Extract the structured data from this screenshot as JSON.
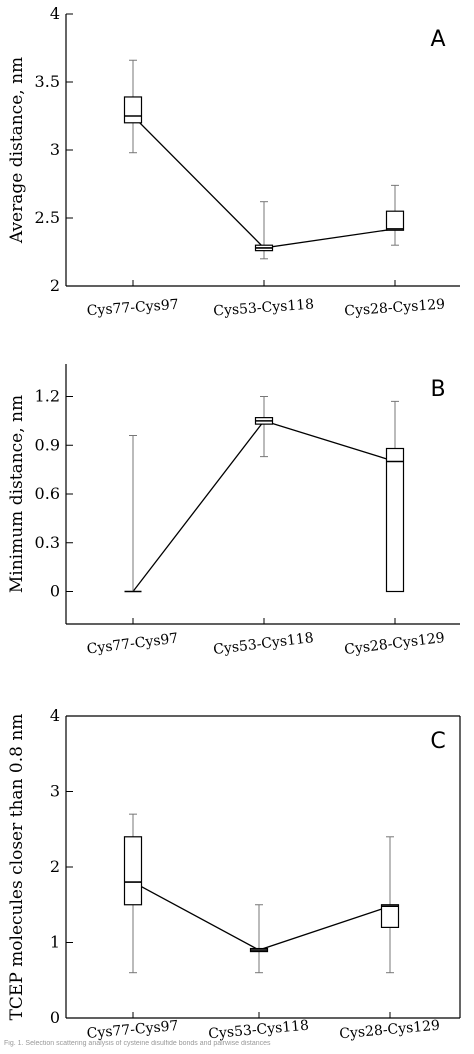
{
  "chart_data": [
    {
      "type": "boxplot",
      "panel_label": "A",
      "ylabel": "Average distance, nm",
      "ylim": [
        2,
        4
      ],
      "yticks": [
        "2",
        "2.5",
        "3",
        "3.5",
        "4"
      ],
      "categories": [
        "Cys77-Cys97",
        "Cys53-Cys118",
        "Cys28-Cys129"
      ],
      "boxes": [
        {
          "whisker_low": 2.98,
          "q1": 3.2,
          "median": 3.25,
          "q3": 3.39,
          "whisker_high": 3.66,
          "mean": 3.25
        },
        {
          "whisker_low": 2.2,
          "q1": 2.26,
          "median": 2.28,
          "q3": 2.3,
          "whisker_high": 2.62,
          "mean": 2.28
        },
        {
          "whisker_low": 2.3,
          "q1": 2.41,
          "median": 2.42,
          "q3": 2.55,
          "whisker_high": 2.74,
          "mean": 2.42
        }
      ]
    },
    {
      "type": "boxplot",
      "panel_label": "B",
      "ylabel": "Minimum distance, nm",
      "ylim": [
        -0.2,
        1.4
      ],
      "yticks": [
        "0",
        "0.3",
        "0.6",
        "0.9",
        "1.2"
      ],
      "categories": [
        "Cys77-Cys97",
        "Cys53-Cys118",
        "Cys28-Cys129"
      ],
      "boxes": [
        {
          "whisker_low": 0.0,
          "q1": 0.0,
          "median": 0.0,
          "q3": 0.0,
          "whisker_high": 0.96,
          "mean": 0.0
        },
        {
          "whisker_low": 0.83,
          "q1": 1.03,
          "median": 1.05,
          "q3": 1.07,
          "whisker_high": 1.2,
          "mean": 1.05
        },
        {
          "whisker_low": 0.0,
          "q1": 0.0,
          "median": 0.8,
          "q3": 0.88,
          "whisker_high": 1.17,
          "mean": 0.8
        }
      ]
    },
    {
      "type": "boxplot",
      "panel_label": "C",
      "ylabel": "TCEP molecules closer than 0.8 nm",
      "ylim": [
        0,
        4
      ],
      "yticks": [
        "0",
        "1",
        "2",
        "3",
        "4"
      ],
      "categories": [
        "Cys77-Cys97",
        "Cys53-Cys118",
        "Cys28-Cys129"
      ],
      "boxes": [
        {
          "whisker_low": 0.6,
          "q1": 1.5,
          "median": 1.8,
          "q3": 2.4,
          "whisker_high": 2.7,
          "mean": 1.8
        },
        {
          "whisker_low": 0.6,
          "q1": 0.88,
          "median": 0.9,
          "q3": 0.92,
          "whisker_high": 1.5,
          "mean": 0.9
        },
        {
          "whisker_low": 0.6,
          "q1": 1.2,
          "median": 1.48,
          "q3": 1.5,
          "whisker_high": 2.4,
          "mean": 1.48
        }
      ]
    }
  ],
  "caption": "Fig. 1. Selection scattering analysis of cysteine disulfide bonds and pairwise distances"
}
